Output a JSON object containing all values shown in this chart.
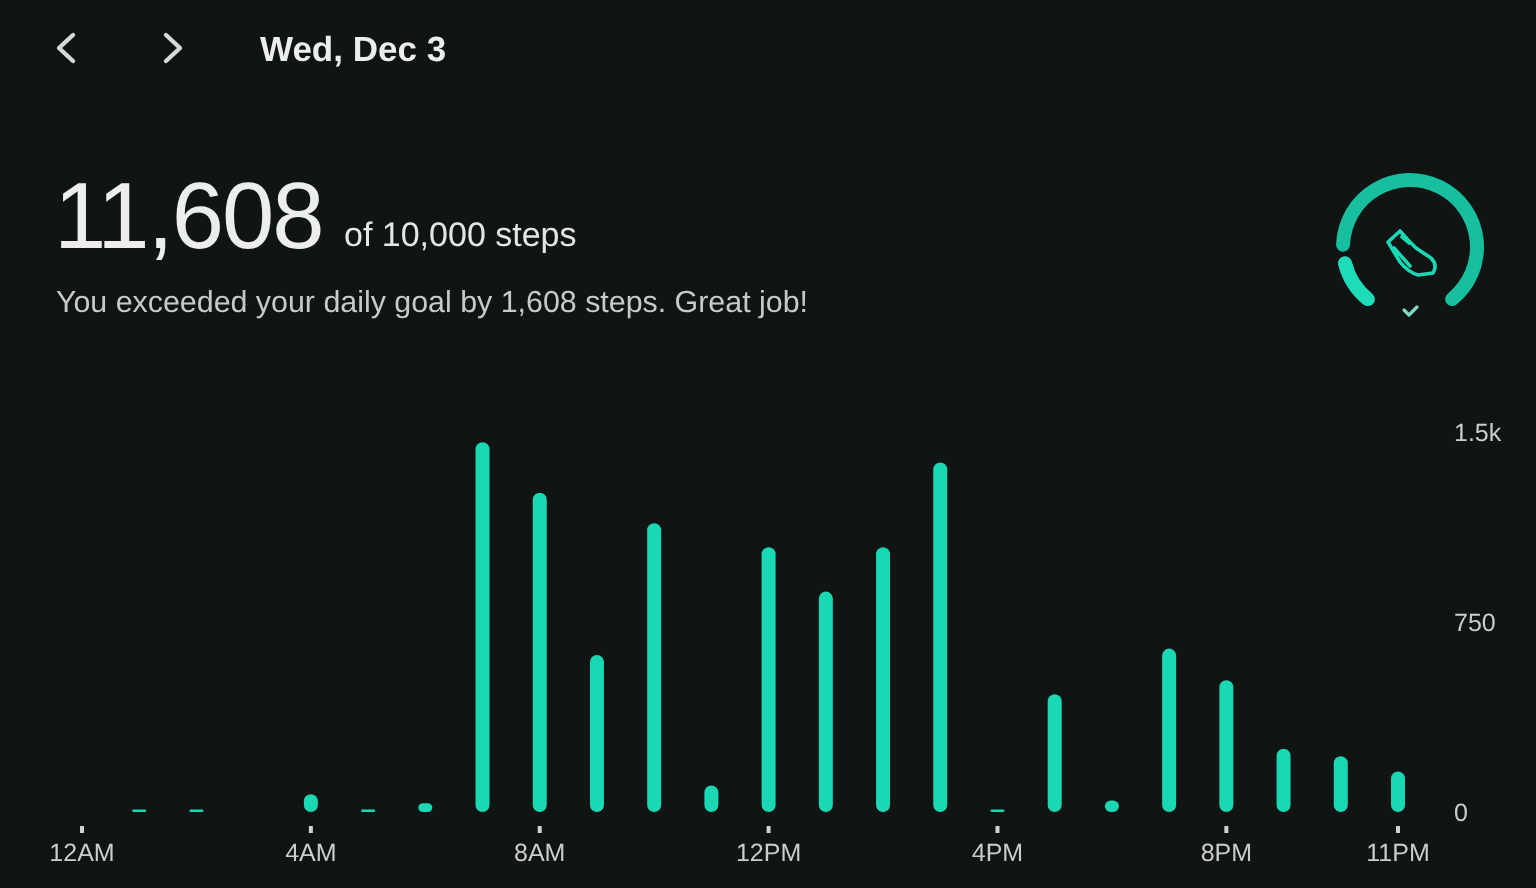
{
  "chart_data": {
    "type": "bar",
    "title": "Wed, Dec 3",
    "subtitle": "You exceeded your daily goal by 1,608 steps. Great job!",
    "annotations": [
      "11,608",
      "of 10,000 steps"
    ],
    "categories": [
      "12AM",
      null,
      null,
      null,
      "4AM",
      null,
      null,
      null,
      "8AM",
      null,
      null,
      null,
      "12PM",
      null,
      null,
      null,
      "4PM",
      null,
      null,
      null,
      "8PM",
      null,
      null,
      "11PM"
    ],
    "values": [
      0,
      10,
      10,
      0,
      70,
      10,
      35,
      1460,
      1260,
      620,
      1140,
      105,
      1045,
      870,
      1045,
      1380,
      10,
      465,
      45,
      645,
      520,
      250,
      220,
      160
    ],
    "color": "#1ad8b4",
    "ylim": [
      0,
      1500
    ],
    "yticks": [
      0,
      750,
      {
        "value": 1500,
        "label": "1.5k"
      }
    ]
  }
}
